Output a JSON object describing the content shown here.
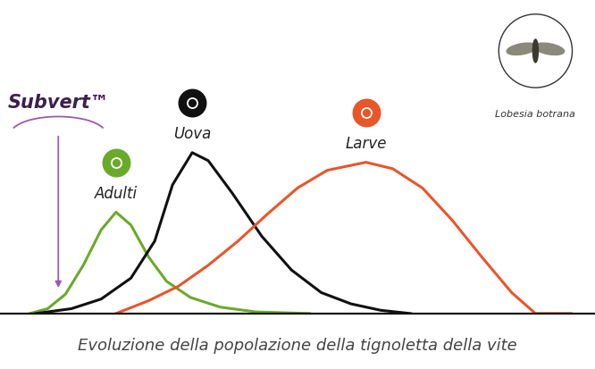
{
  "chart_data": {
    "type": "line",
    "caption": "Evoluzione della popolazione della tignoletta della vite",
    "image_label": "Lobesia botrana",
    "annotations": [
      {
        "text": "Subvert™",
        "x": 9.8
      }
    ],
    "xlim": [
      0,
      100
    ],
    "ylim": [
      0,
      180
    ],
    "tick_labels": false,
    "grid": false,
    "series": [
      {
        "name": "Adulti",
        "color": "#6aaa2a",
        "x": [
          5,
          8,
          11,
          14,
          17,
          19.5,
          22,
          25,
          28,
          32,
          37,
          43,
          52
        ],
        "values": [
          0,
          3,
          12,
          30,
          52,
          63,
          55,
          35,
          20,
          10,
          4,
          1,
          0
        ]
      },
      {
        "name": "Uova",
        "color": "#111111",
        "x": [
          6,
          12,
          17,
          22,
          26,
          29,
          32.3,
          35,
          39,
          44,
          49,
          54,
          59,
          64,
          69
        ],
        "values": [
          0,
          3,
          9,
          22,
          45,
          80,
          100,
          95,
          75,
          48,
          27,
          13,
          6,
          2,
          0
        ]
      },
      {
        "name": "Larve",
        "color": "#e8562a",
        "x": [
          19.5,
          25,
          30,
          35,
          40,
          45,
          50,
          55,
          61.5,
          66,
          71,
          76,
          81,
          86,
          90,
          96
        ],
        "values": [
          0,
          8,
          17,
          30,
          45,
          62,
          78,
          89,
          94,
          90,
          78,
          58,
          35,
          13,
          0,
          0
        ]
      }
    ]
  }
}
